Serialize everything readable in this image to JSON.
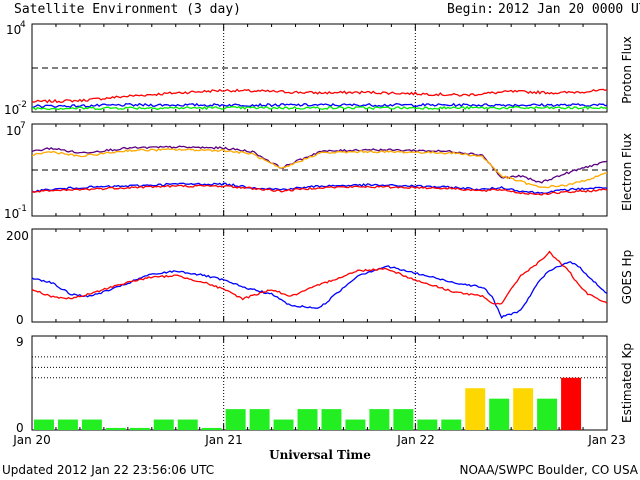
{
  "header": {
    "title": "Satellite Environment (3 day)",
    "begin_label": "Begin:",
    "begin_value": "2012 Jan 20 0000 UTC"
  },
  "footer": {
    "updated": "Updated 2012 Jan 22 23:56:06 UTC",
    "source": "NOAA/SWPC Boulder, CO USA",
    "xaxis_title": "Universal Time"
  },
  "x_ticks": [
    "Jan 20",
    "Jan 21",
    "Jan 22",
    "Jan 23"
  ],
  "colors": {
    "red": "#ff0000",
    "blue": "#0000ff",
    "green": "#00ee00",
    "purple": "#5a0080",
    "orange": "#ffaa00",
    "kp_green": "#22ee22",
    "kp_yellow": "#ffd700",
    "kp_red": "#ff0000"
  },
  "chart_data": [
    {
      "type": "line",
      "panel": "proton",
      "ylabel": "Proton Flux",
      "ytick_labels": {
        "top_base": "10",
        "top_exp": "4",
        "bottom_base": "10",
        "bottom_exp": "-2"
      },
      "yscale": "log",
      "ylim": [
        0.01,
        10000
      ],
      "threshold": 10,
      "x_days": [
        0,
        0.25,
        0.5,
        0.75,
        1.0,
        1.25,
        1.5,
        1.75,
        2.0,
        2.25,
        2.5,
        2.75,
        3.0
      ],
      "series": [
        {
          "color": "red",
          "values": [
            0.05,
            0.06,
            0.12,
            0.2,
            0.3,
            0.25,
            0.2,
            0.22,
            0.18,
            0.14,
            0.25,
            0.2,
            0.3
          ]
        },
        {
          "color": "blue",
          "values": [
            0.025,
            0.026,
            0.03,
            0.03,
            0.03,
            0.03,
            0.03,
            0.03,
            0.03,
            0.03,
            0.03,
            0.03,
            0.03
          ]
        },
        {
          "color": "green",
          "values": [
            0.018,
            0.018,
            0.019,
            0.019,
            0.019,
            0.019,
            0.019,
            0.019,
            0.019,
            0.019,
            0.019,
            0.019,
            0.019
          ]
        }
      ]
    },
    {
      "type": "line",
      "panel": "electron",
      "ylabel": "Electron Flux",
      "ytick_labels": {
        "top_base": "10",
        "top_exp": "7",
        "bottom_base": "10",
        "bottom_exp": "-1"
      },
      "yscale": "log",
      "ylim": [
        0.1,
        10000000
      ],
      "threshold": 1000,
      "x_days": [
        0,
        0.1,
        0.25,
        0.5,
        0.75,
        1.0,
        1.15,
        1.3,
        1.5,
        1.75,
        2.0,
        2.2,
        2.35,
        2.45,
        2.55,
        2.65,
        2.8,
        2.9,
        3.0
      ],
      "series": [
        {
          "color": "purple",
          "values": [
            40000,
            80000,
            30000,
            80000,
            100000,
            80000,
            40000,
            1500,
            40000,
            60000,
            50000,
            40000,
            20000,
            200,
            300,
            80,
            600,
            2000,
            5000
          ]
        },
        {
          "color": "orange",
          "values": [
            20000,
            40000,
            15000,
            50000,
            60000,
            50000,
            25000,
            1200,
            30000,
            40000,
            35000,
            30000,
            15000,
            300,
            100,
            30,
            50,
            150,
            500
          ]
        },
        {
          "color": "blue",
          "values": [
            15,
            20,
            30,
            40,
            60,
            60,
            30,
            20,
            40,
            50,
            40,
            30,
            20,
            30,
            15,
            10,
            20,
            25,
            30
          ]
        },
        {
          "color": "red",
          "values": [
            12,
            15,
            20,
            30,
            40,
            40,
            25,
            15,
            30,
            35,
            30,
            25,
            15,
            20,
            10,
            8,
            12,
            15,
            20
          ]
        }
      ]
    },
    {
      "type": "line",
      "panel": "hp",
      "ylabel": "GOES Hp",
      "ytick_labels": {
        "top": "200",
        "bottom": "0"
      },
      "ylim": [
        0,
        200
      ],
      "x_days": [
        0,
        0.1,
        0.2,
        0.3,
        0.45,
        0.6,
        0.75,
        0.9,
        1.0,
        1.1,
        1.25,
        1.35,
        1.5,
        1.7,
        1.85,
        2.0,
        2.2,
        2.35,
        2.4,
        2.45,
        2.55,
        2.65,
        2.7,
        2.8,
        2.85,
        2.9,
        3.0
      ],
      "series": [
        {
          "color": "blue",
          "values": [
            95,
            85,
            60,
            55,
            75,
            100,
            110,
            100,
            90,
            75,
            60,
            35,
            30,
            100,
            120,
            105,
            85,
            75,
            55,
            10,
            25,
            90,
            110,
            130,
            120,
            100,
            60
          ]
        },
        {
          "color": "red",
          "values": [
            70,
            55,
            50,
            60,
            80,
            95,
            100,
            85,
            70,
            50,
            70,
            55,
            80,
            110,
            115,
            90,
            65,
            55,
            40,
            40,
            100,
            130,
            150,
            110,
            80,
            60,
            40
          ]
        }
      ]
    },
    {
      "type": "bar",
      "panel": "kp",
      "ylabel": "Estimated Kp",
      "ytick_labels": {
        "top": "9",
        "bottom": "0"
      },
      "ylim": [
        0,
        9
      ],
      "gridlines": [
        5,
        6,
        7
      ],
      "bar_hours": 3,
      "values": [
        1,
        1,
        1,
        0.2,
        0.2,
        1,
        1,
        0.2,
        2,
        2,
        1,
        2,
        2,
        1,
        2,
        2,
        1,
        1,
        4,
        3,
        4,
        3,
        5
      ],
      "bar_colors": [
        "kp_green",
        "kp_green",
        "kp_green",
        "kp_green",
        "kp_green",
        "kp_green",
        "kp_green",
        "kp_green",
        "kp_green",
        "kp_green",
        "kp_green",
        "kp_green",
        "kp_green",
        "kp_green",
        "kp_green",
        "kp_green",
        "kp_green",
        "kp_green",
        "kp_yellow",
        "kp_green",
        "kp_yellow",
        "kp_green",
        "kp_red"
      ]
    }
  ]
}
